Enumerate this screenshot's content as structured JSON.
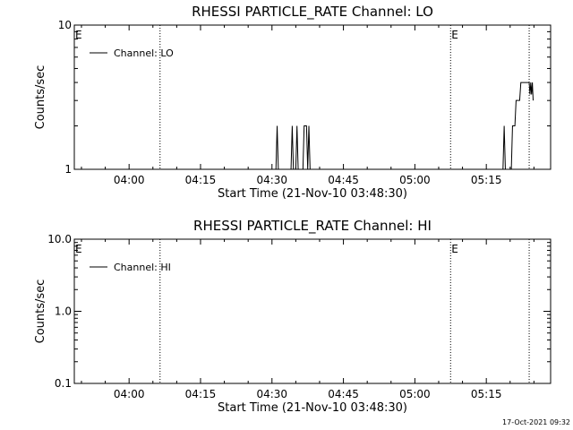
{
  "footer": {
    "timestamp": "17-Oct-2021 09:32"
  },
  "chart_data": [
    {
      "type": "line",
      "title": "RHESSI PARTICLE_RATE Channel: LO",
      "xlabel": "Start Time (21-Nov-10 03:48:30)",
      "ylabel": "Counts/sec",
      "yscale": "log",
      "ylim": [
        1,
        10
      ],
      "y_tick_labels": [
        "1",
        "10"
      ],
      "x_tick_labels": [
        "04:00",
        "04:15",
        "04:30",
        "04:45",
        "05:00",
        "05:15"
      ],
      "xlim": [
        "03:48:30",
        "05:28:30"
      ],
      "event_markers": [
        {
          "label": "E",
          "time": "03:48:30"
        },
        {
          "label": "E",
          "time": "05:07:30"
        }
      ],
      "vertical_lines": [
        "04:06:30",
        "05:07:30",
        "05:24:00"
      ],
      "grid": false,
      "legend_position": "top-left",
      "series": [
        {
          "name": "Channel: LO",
          "points": [
            [
              "03:48:30",
              1
            ],
            [
              "04:30:50",
              1
            ],
            [
              "04:31:05",
              2
            ],
            [
              "04:31:20",
              1
            ],
            [
              "04:34:00",
              1
            ],
            [
              "04:34:15",
              2
            ],
            [
              "04:34:30",
              1
            ],
            [
              "04:35:00",
              1
            ],
            [
              "04:35:15",
              2
            ],
            [
              "04:35:30",
              1
            ],
            [
              "04:36:30",
              1
            ],
            [
              "04:36:45",
              2
            ],
            [
              "04:37:15",
              2
            ],
            [
              "04:37:30",
              1
            ],
            [
              "04:37:45",
              2
            ],
            [
              "04:38:00",
              1
            ],
            [
              "05:18:30",
              1
            ],
            [
              "05:18:45",
              2
            ],
            [
              "05:19:00",
              1
            ],
            [
              "05:20:15",
              1
            ],
            [
              "05:20:30",
              2
            ],
            [
              "05:21:00",
              2
            ],
            [
              "05:21:15",
              3
            ],
            [
              "05:22:00",
              3
            ],
            [
              "05:22:15",
              4
            ],
            [
              "05:24:00",
              4
            ],
            [
              "05:24:10",
              3.3
            ],
            [
              "05:24:20",
              4
            ],
            [
              "05:24:30",
              3.3
            ],
            [
              "05:24:40",
              4
            ],
            [
              "05:24:50",
              3
            ]
          ]
        }
      ]
    },
    {
      "type": "line",
      "title": "RHESSI PARTICLE_RATE Channel: HI",
      "xlabel": "Start Time (21-Nov-10 03:48:30)",
      "ylabel": "Counts/sec",
      "yscale": "log",
      "ylim": [
        0.1,
        10
      ],
      "y_tick_labels": [
        "0.1",
        "1.0",
        "10.0"
      ],
      "x_tick_labels": [
        "04:00",
        "04:15",
        "04:30",
        "04:45",
        "05:00",
        "05:15"
      ],
      "xlim": [
        "03:48:30",
        "05:28:30"
      ],
      "event_markers": [
        {
          "label": "E",
          "time": "03:48:30"
        },
        {
          "label": "E",
          "time": "05:07:30"
        }
      ],
      "vertical_lines": [
        "04:06:30",
        "05:07:30",
        "05:24:00"
      ],
      "grid": false,
      "legend_position": "top-left",
      "series": [
        {
          "name": "Channel: HI",
          "points": []
        }
      ]
    }
  ]
}
